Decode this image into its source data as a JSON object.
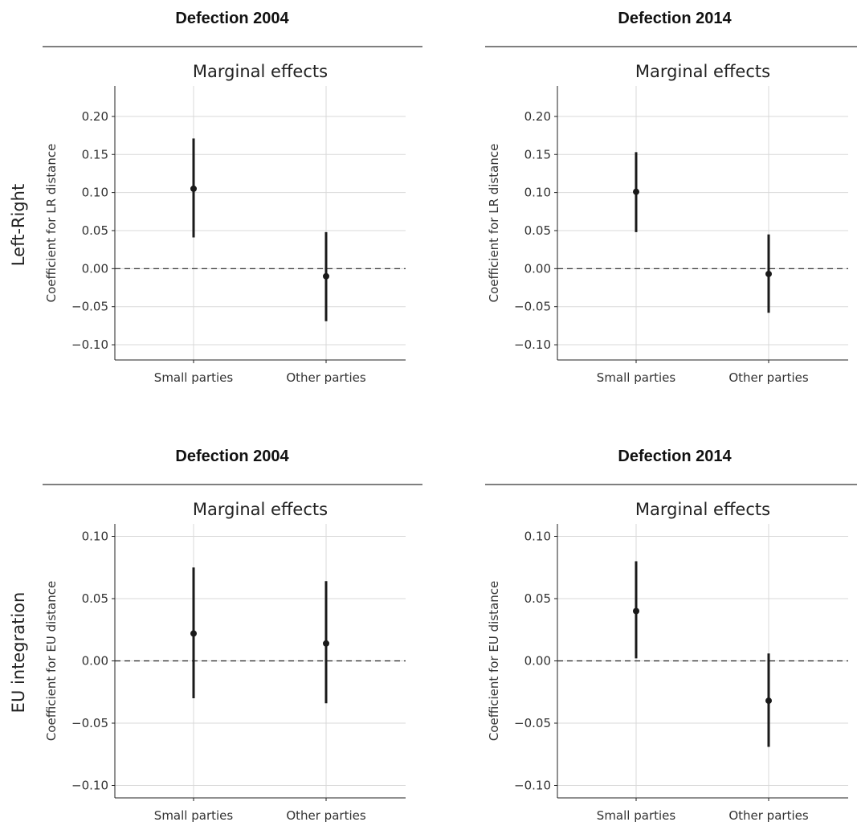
{
  "row_labels": [
    "Left-Right",
    "EU integration"
  ],
  "chart_data": [
    {
      "type": "scatter",
      "column_title": "Defection 2004",
      "title": "Marginal effects",
      "ylabel": "Coefficient for LR distance",
      "xlabel": "",
      "categories": [
        "Small parties",
        "Other parties"
      ],
      "estimates": [
        0.105,
        -0.01
      ],
      "ci_lower": [
        0.041,
        -0.069
      ],
      "ci_upper": [
        0.171,
        0.048
      ],
      "ylim": [
        -0.12,
        0.24
      ],
      "yticks": [
        -0.1,
        -0.05,
        0.0,
        0.05,
        0.1,
        0.15,
        0.2
      ],
      "ytick_labels": [
        "−0.10",
        "−0.05",
        "0.00",
        "0.05",
        "0.10",
        "0.15",
        "0.20"
      ],
      "reference_line": 0,
      "grid": true
    },
    {
      "type": "scatter",
      "column_title": "Defection 2014",
      "title": "Marginal effects",
      "ylabel": "Coefficient for LR distance",
      "xlabel": "",
      "categories": [
        "Small parties",
        "Other parties"
      ],
      "estimates": [
        0.101,
        -0.007
      ],
      "ci_lower": [
        0.048,
        -0.058
      ],
      "ci_upper": [
        0.153,
        0.045
      ],
      "ylim": [
        -0.12,
        0.24
      ],
      "yticks": [
        -0.1,
        -0.05,
        0.0,
        0.05,
        0.1,
        0.15,
        0.2
      ],
      "ytick_labels": [
        "−0.10",
        "−0.05",
        "0.00",
        "0.05",
        "0.10",
        "0.15",
        "0.20"
      ],
      "reference_line": 0,
      "grid": true
    },
    {
      "type": "scatter",
      "column_title": "Defection 2004",
      "title": "Marginal effects",
      "ylabel": "Coefficient for EU distance",
      "xlabel": "",
      "categories": [
        "Small parties",
        "Other parties"
      ],
      "estimates": [
        0.022,
        0.014
      ],
      "ci_lower": [
        -0.03,
        -0.034
      ],
      "ci_upper": [
        0.075,
        0.064
      ],
      "ylim": [
        -0.11,
        0.11
      ],
      "yticks": [
        -0.1,
        -0.05,
        0.0,
        0.05,
        0.1
      ],
      "ytick_labels": [
        "−0.10",
        "−0.05",
        "0.00",
        "0.05",
        "0.10"
      ],
      "reference_line": 0,
      "grid": true
    },
    {
      "type": "scatter",
      "column_title": "Defection 2014",
      "title": "Marginal effects",
      "ylabel": "Coefficient for EU distance",
      "xlabel": "",
      "categories": [
        "Small parties",
        "Other parties"
      ],
      "estimates": [
        0.04,
        -0.032
      ],
      "ci_lower": [
        0.002,
        -0.069
      ],
      "ci_upper": [
        0.08,
        0.006
      ],
      "ylim": [
        -0.11,
        0.11
      ],
      "yticks": [
        -0.1,
        -0.05,
        0.0,
        0.05,
        0.1
      ],
      "ytick_labels": [
        "−0.10",
        "−0.05",
        "0.00",
        "0.05",
        "0.10"
      ],
      "reference_line": 0,
      "grid": true
    }
  ]
}
